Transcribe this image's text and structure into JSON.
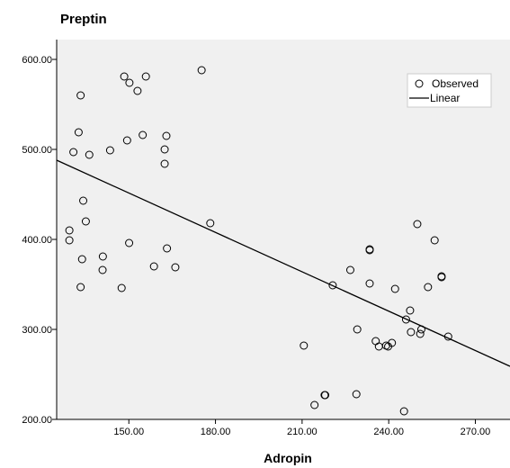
{
  "chart_data": {
    "type": "scatter",
    "title": "Preptin",
    "xlabel": "Adropin",
    "ylabel": "",
    "xlim": [
      125,
      282
    ],
    "ylim": [
      200,
      622
    ],
    "xticks": [
      150,
      180,
      210,
      240,
      270
    ],
    "xtick_labels": [
      "150.00",
      "180.00",
      "210.00",
      "240.00",
      "270.00"
    ],
    "yticks": [
      200,
      300,
      400,
      500,
      600
    ],
    "ytick_labels": [
      "200.00",
      "300.00",
      "400.00",
      "500.00",
      "600.00"
    ],
    "grid": false,
    "legend_position": "top-right",
    "legend": [
      "Observed",
      "Linear"
    ],
    "colors": {
      "background": "#f0f0f0",
      "axes": "#000000",
      "marker_edge": "#000000",
      "line": "#000000"
    },
    "series": [
      {
        "name": "Observed",
        "type": "scatter",
        "x": [
          148.4,
          150.2,
          155.9,
          175.2,
          153.0,
          133.3,
          132.6,
          163.0,
          154.8,
          162.4,
          130.8,
          136.3,
          143.5,
          149.4,
          162.4,
          134.2,
          129.4,
          135.1,
          178.2,
          129.4,
          150.1,
          163.2,
          141.0,
          133.8,
          158.7,
          166.1,
          140.9,
          133.3,
          147.5,
          233.4,
          249.9,
          255.9,
          233.4,
          226.7,
          220.6,
          233.4,
          258.3,
          242.2,
          253.6,
          258.3,
          247.4,
          246.0,
          229.1,
          251.3,
          247.7,
          250.9,
          260.6,
          235.5,
          241.1,
          239.1,
          239.8,
          236.6,
          210.6,
          218.0,
          217.8,
          228.8,
          214.3,
          245.3
        ],
        "y": [
          581,
          574,
          581,
          588,
          565,
          560,
          519,
          515,
          516,
          500,
          497,
          494,
          499,
          510,
          484,
          443,
          410,
          420,
          418,
          399,
          396,
          390,
          381,
          378,
          370,
          369,
          366,
          347,
          346,
          389,
          417,
          399,
          388,
          366,
          349,
          351,
          359,
          345,
          347,
          358,
          321,
          311,
          300,
          300,
          297,
          295,
          292,
          287,
          285,
          282,
          281,
          281,
          282,
          227,
          227,
          228,
          216,
          209
        ]
      },
      {
        "name": "Linear",
        "type": "line",
        "x": [
          125,
          282
        ],
        "y": [
          488,
          259
        ]
      }
    ]
  }
}
